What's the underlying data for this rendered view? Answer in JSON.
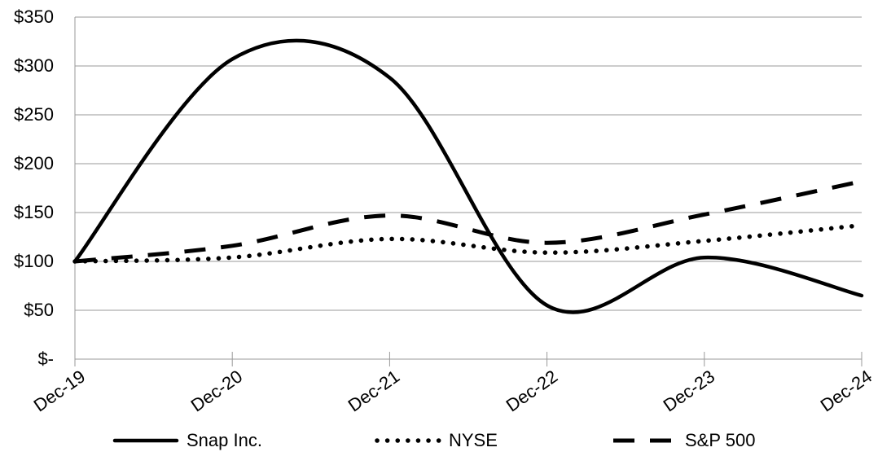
{
  "chart_data": {
    "type": "line",
    "smoothed": true,
    "title": "",
    "xlabel": "",
    "ylabel": "",
    "x_categories": [
      "Dec-19",
      "Dec-20",
      "Dec-21",
      "Dec-22",
      "Dec-23",
      "Dec-24"
    ],
    "series": [
      {
        "name": "Snap Inc.",
        "line_style": "solid",
        "values": [
          100,
          307,
          288,
          55,
          104,
          65
        ]
      },
      {
        "name": "NYSE",
        "line_style": "dotted",
        "values": [
          100,
          104,
          123,
          109,
          121,
          137
        ]
      },
      {
        "name": "S&P 500",
        "line_style": "dashed",
        "values": [
          100,
          116,
          147,
          119,
          148,
          182
        ]
      }
    ],
    "y_axis": {
      "min": 0,
      "max": 350,
      "step": 50,
      "tick_labels_top_down": [
        "$350",
        "$300",
        "$250",
        "$200",
        "$150",
        "$100",
        "$50",
        "$-"
      ]
    },
    "legend_position": "bottom",
    "grid": "horizontal",
    "colors": {
      "line": "#000000",
      "grid": "#999999",
      "text": "#000000",
      "background": "#ffffff"
    }
  }
}
